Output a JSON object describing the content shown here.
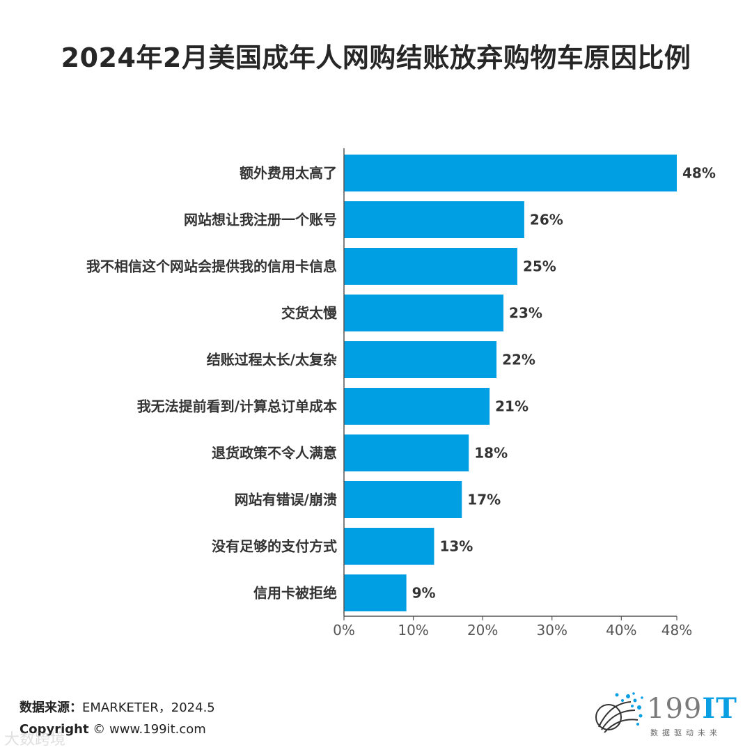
{
  "title": "2024年2月美国成年人网购结账放弃购物车原因比例",
  "chart_data": {
    "type": "bar",
    "orientation": "horizontal",
    "title": "2024年2月美国成年人网购结账放弃购物车原因比例",
    "categories": [
      "额外费用太高了",
      "网站想让我注册一个账号",
      "我不相信这个网站会提供我的信用卡信息",
      "交货太慢",
      "结账过程太长/太复杂",
      "我无法提前看到/计算总订单成本",
      "退货政策不令人满意",
      "网站有错误/崩溃",
      "没有足够的支付方式",
      "信用卡被拒绝"
    ],
    "values": [
      48,
      26,
      25,
      23,
      22,
      21,
      18,
      17,
      13,
      9
    ],
    "value_labels": [
      "48%",
      "26%",
      "25%",
      "23%",
      "22%",
      "21%",
      "18%",
      "17%",
      "13%",
      "9%"
    ],
    "xlim": [
      0,
      48
    ],
    "xticks": [
      0,
      10,
      20,
      30,
      40,
      48
    ],
    "xtick_labels": [
      "0%",
      "10%",
      "20%",
      "30%",
      "40%",
      "48%"
    ],
    "bar_color": "#009fe3",
    "grid": false
  },
  "footer": {
    "source_label": "数据来源：",
    "source_value": "EMARKETER，2024.5",
    "copyright_label": "Copyright",
    "copyright_value": "© www.199it.com",
    "watermark": "大数跨境"
  },
  "logo": {
    "brand_num": "199",
    "brand_it": "IT",
    "tagline": "数据驱动未来",
    "accent_color": "#0a9fe3"
  }
}
